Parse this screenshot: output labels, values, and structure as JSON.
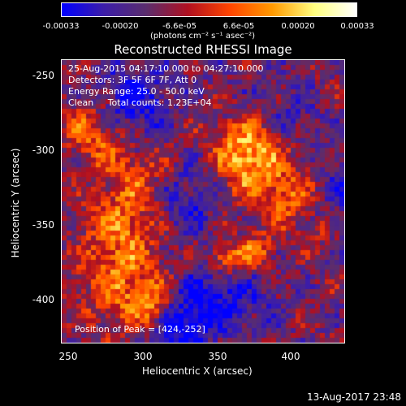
{
  "colorbar": {
    "ticks": [
      "-0.00033",
      "-0.00020",
      "-6.6e-05",
      "6.6e-05",
      "0.00020",
      "0.00033"
    ],
    "units": "(photons cm⁻² s⁻¹ asec⁻²)",
    "colors": [
      "#0000ff",
      "#3c1da8",
      "#5a2d6e",
      "#b01020",
      "#ff4500",
      "#ff9a00",
      "#ffff80",
      "#ffffff"
    ]
  },
  "title": "Reconstructed RHESSI Image",
  "info": {
    "time_range": "25-Aug-2015 04:17:10.000 to 04:27:10.000",
    "detectors": "Detectors: 3F 5F 6F 7F, Att 0",
    "energy": "Energy Range: 25.0 - 50.0 keV",
    "clean": "Clean     Total counts: 1.23E+04"
  },
  "peak": "Position of Peak = [424,-252]",
  "axes": {
    "xlabel": "Heliocentric X (arcsec)",
    "ylabel": "Heliocentric Y (arcsec)",
    "xticks": [
      "250",
      "300",
      "350",
      "400"
    ],
    "yticks": [
      "-250",
      "-300",
      "-350",
      "-400"
    ],
    "xlim": [
      248,
      440
    ],
    "ylim": [
      -432,
      -240
    ]
  },
  "timestamp": "13-Aug-2017 23:48"
}
